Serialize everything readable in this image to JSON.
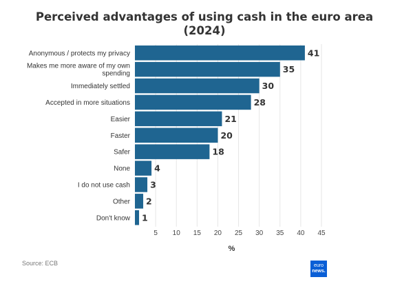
{
  "chart_data": {
    "type": "bar",
    "orientation": "horizontal",
    "title_lines": [
      "Perceived advantages of using cash in the euro area",
      "(2024)"
    ],
    "categories": [
      [
        "Anonymous / protects my privacy"
      ],
      [
        "Makes me more aware of my own",
        "spending"
      ],
      [
        "Immediately settled"
      ],
      [
        "Accepted in more situations"
      ],
      [
        "Easier"
      ],
      [
        "Faster"
      ],
      [
        "Safer"
      ],
      [
        "None"
      ],
      [
        "I do not use cash"
      ],
      [
        "Other"
      ],
      [
        "Don't know"
      ]
    ],
    "values": [
      41,
      35,
      30,
      28,
      21,
      20,
      18,
      4,
      3,
      2,
      1
    ],
    "xlabel": "%",
    "xlim": [
      0,
      45
    ],
    "xticks": [
      5,
      10,
      15,
      20,
      25,
      30,
      35,
      40,
      45
    ],
    "grid": true,
    "bar_color": "#1f6591"
  },
  "source": "Source: ECB",
  "logo": {
    "line1": "euro",
    "line2": "news."
  }
}
